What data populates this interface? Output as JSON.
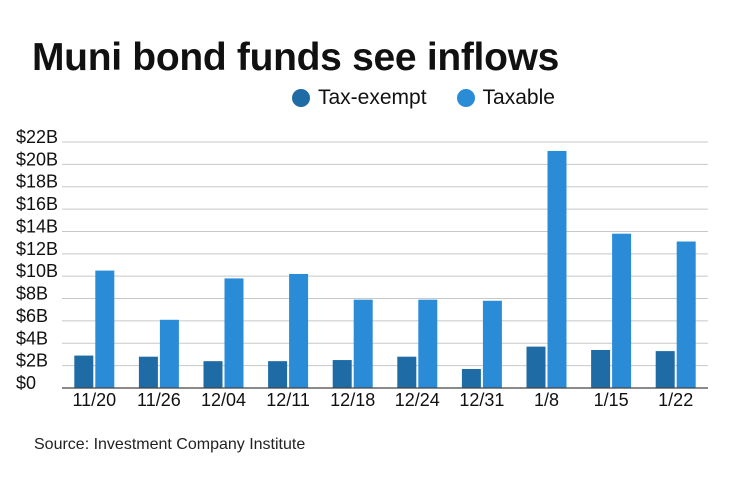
{
  "title": "Muni bond funds see inflows",
  "source": "Source: Investment Company Institute",
  "colors": {
    "tax_exempt": "#1f6ba6",
    "taxable": "#2a8bd7",
    "grid": "#c8c8c8"
  },
  "chart_data": {
    "type": "bar",
    "title": "Muni bond funds see inflows",
    "categories": [
      "11/20",
      "11/26",
      "12/04",
      "12/11",
      "12/18",
      "12/24",
      "12/31",
      "1/8",
      "1/15",
      "1/22"
    ],
    "series": [
      {
        "name": "Tax-exempt",
        "values": [
          2.9,
          2.8,
          2.4,
          2.4,
          2.5,
          2.8,
          1.7,
          3.7,
          3.4,
          3.3
        ]
      },
      {
        "name": "Taxable",
        "values": [
          10.5,
          6.1,
          9.8,
          10.2,
          7.9,
          7.9,
          7.8,
          21.2,
          13.8,
          13.1
        ]
      }
    ],
    "y_ticks": [
      "$0",
      "$2B",
      "$4B",
      "$6B",
      "$8B",
      "$10B",
      "$12B",
      "$14B",
      "$16B",
      "$18B",
      "$20B",
      "$22B"
    ],
    "ylim": [
      0,
      22
    ],
    "legend": "top",
    "grid": true
  }
}
